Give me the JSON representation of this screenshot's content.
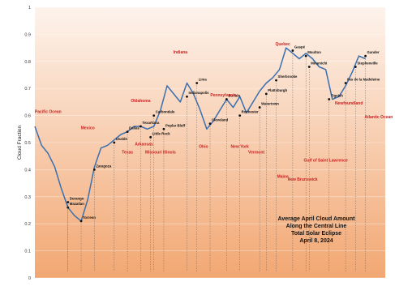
{
  "chart_data": {
    "type": "line",
    "title_lines": [
      "Average April Cloud Amount",
      "Along the Central Line",
      "Total Solar Eclipse",
      "April 8, 2024"
    ],
    "xlabel": "",
    "ylabel": "Cloud Fraction",
    "ylim": [
      0,
      1
    ],
    "yticks": [
      "0",
      "0.1",
      "0.2",
      "0.3",
      "0.4",
      "0.5",
      "0.6",
      "0.7",
      "0.8",
      "0.9",
      "1"
    ],
    "grid": true,
    "line_color": "#3a6fb0",
    "background_top": "#fdf3ec",
    "background_bottom": "#f2a772",
    "series": [
      {
        "x": [
          0,
          2,
          4,
          6,
          8,
          10,
          12,
          14,
          16,
          18,
          20,
          22,
          24,
          26,
          28,
          30,
          32,
          34,
          36,
          38,
          40,
          42,
          44,
          46,
          48,
          50,
          52,
          54,
          56,
          58,
          60,
          62,
          64,
          66,
          68,
          70,
          72,
          74,
          76,
          78,
          80,
          82,
          84,
          86,
          88,
          90,
          92,
          94,
          96,
          98,
          100
        ],
        "values": [
          0.56,
          0.49,
          0.46,
          0.41,
          0.33,
          0.26,
          0.23,
          0.21,
          0.29,
          0.41,
          0.48,
          0.49,
          0.51,
          0.53,
          0.54,
          0.56,
          0.56,
          0.55,
          0.56,
          0.62,
          0.71,
          0.68,
          0.65,
          0.72,
          0.68,
          0.62,
          0.55,
          0.58,
          0.62,
          0.66,
          0.63,
          0.67,
          0.61,
          0.65,
          0.69,
          0.72,
          0.74,
          0.77,
          0.85,
          0.83,
          0.81,
          0.83,
          0.81,
          0.78,
          0.77,
          0.66,
          0.67,
          0.71,
          0.76,
          0.82,
          0.81
        ]
      }
    ],
    "places": [
      {
        "label": "Mazatlan",
        "x": 10,
        "y": 0.26
      },
      {
        "label": "Durango",
        "x": 10,
        "y": 0.28
      },
      {
        "label": "Torreon",
        "x": 14,
        "y": 0.21
      },
      {
        "label": "Zaragoza",
        "x": 18,
        "y": 0.4
      },
      {
        "label": "Uvalde",
        "x": 24,
        "y": 0.5
      },
      {
        "label": "Dallas",
        "x": 28,
        "y": 0.54
      },
      {
        "label": "Texarkana",
        "x": 32,
        "y": 0.56
      },
      {
        "label": "Little Rock",
        "x": 35,
        "y": 0.52
      },
      {
        "label": "Poplar Bluff",
        "x": 39,
        "y": 0.55
      },
      {
        "label": "Carbondale",
        "x": 36,
        "y": 0.6
      },
      {
        "label": "Indianapolis",
        "x": 46,
        "y": 0.67
      },
      {
        "label": "Lima",
        "x": 49,
        "y": 0.72
      },
      {
        "label": "Cleveland",
        "x": 53,
        "y": 0.57
      },
      {
        "label": "Buffalo",
        "x": 58,
        "y": 0.66
      },
      {
        "label": "Rochester",
        "x": 62,
        "y": 0.6
      },
      {
        "label": "Watertown",
        "x": 68,
        "y": 0.63
      },
      {
        "label": "Plattsburgh",
        "x": 70,
        "y": 0.68
      },
      {
        "label": "Sherbrooke",
        "x": 73,
        "y": 0.73
      },
      {
        "label": "Gaspé",
        "x": 78,
        "y": 0.84
      },
      {
        "label": "Moulton",
        "x": 82,
        "y": 0.82
      },
      {
        "label": "Miramichi",
        "x": 83,
        "y": 0.78
      },
      {
        "label": "Tignish",
        "x": 89,
        "y": 0.66
      },
      {
        "label": "Iles de la Madeleine",
        "x": 94,
        "y": 0.72
      },
      {
        "label": "Stephenville",
        "x": 97,
        "y": 0.78
      },
      {
        "label": "Gander",
        "x": 100,
        "y": 0.82
      }
    ],
    "regions": [
      {
        "label": "Pacific Ocean",
        "x": 4,
        "y": 0.61
      },
      {
        "label": "Mexico",
        "x": 16,
        "y": 0.55
      },
      {
        "label": "Texas",
        "x": 28,
        "y": 0.46
      },
      {
        "label": "Oklahoma",
        "x": 32,
        "y": 0.65
      },
      {
        "label": "Arkansas",
        "x": 33,
        "y": 0.49
      },
      {
        "label": "Missouri Illinois",
        "x": 38,
        "y": 0.46
      },
      {
        "label": "Indiana",
        "x": 44,
        "y": 0.83
      },
      {
        "label": "Ohio",
        "x": 51,
        "y": 0.48
      },
      {
        "label": "Pennsylvania",
        "x": 57,
        "y": 0.67
      },
      {
        "label": "New York",
        "x": 62,
        "y": 0.48
      },
      {
        "label": "Vermont",
        "x": 67,
        "y": 0.46
      },
      {
        "label": "Quebec",
        "x": 75,
        "y": 0.86
      },
      {
        "label": "Maine",
        "x": 75,
        "y": 0.37
      },
      {
        "label": "New Brunswick",
        "x": 81,
        "y": 0.36
      },
      {
        "label": "Gulf of Saint Lawrence",
        "x": 88,
        "y": 0.43
      },
      {
        "label": "Newfoundland",
        "x": 95,
        "y": 0.64
      },
      {
        "label": "Atlantic Ocean",
        "x": 104,
        "y": 0.59
      }
    ]
  }
}
